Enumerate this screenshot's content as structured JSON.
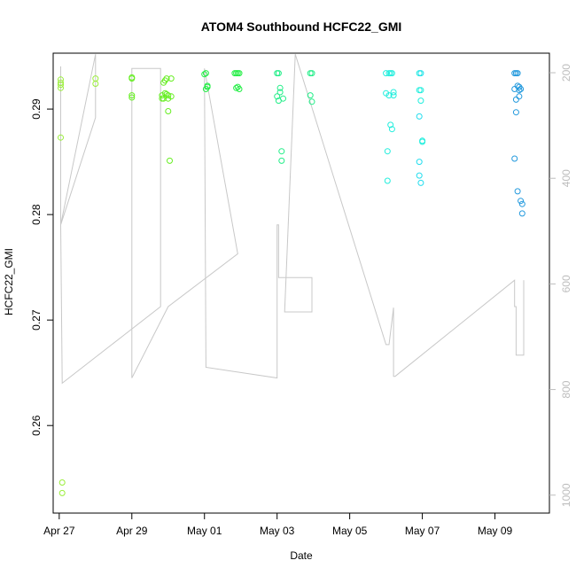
{
  "chart_data": {
    "type": "scatter",
    "title": "ATOM4 Southbound HCFC22_GMI",
    "xlabel": "Date",
    "ylabel": "HCFC22_GMI",
    "x_axis": {
      "type": "date",
      "range": [
        "2016-04-26T20:00",
        "2016-05-10T12:00"
      ],
      "ticks": [
        "2016-04-27",
        "2016-04-29",
        "2016-05-01",
        "2016-05-03",
        "2016-05-05",
        "2016-05-07",
        "2016-05-09"
      ],
      "tick_labels": [
        "Apr 27",
        "Apr 29",
        "May 01",
        "May 03",
        "May 05",
        "May 07",
        "May 09"
      ]
    },
    "y_axis_left": {
      "range": [
        0.2517,
        0.2953
      ],
      "ticks": [
        0.26,
        0.27,
        0.28,
        0.29
      ],
      "tick_labels": [
        "0.26",
        "0.27",
        "0.28",
        "0.29"
      ]
    },
    "y_axis_right": {
      "range": [
        1034,
        163
      ],
      "ticks": [
        200,
        400,
        600,
        800,
        1000
      ],
      "tick_labels": [
        "200",
        "400",
        "600",
        "800",
        "1000"
      ],
      "color": "#bdbdbd"
    },
    "grid": false,
    "marker": "open-circle",
    "series": [
      {
        "color": "#9aee3a",
        "x": [
          "2016-04-27T01:00",
          "2016-04-27T01:00",
          "2016-04-27T01:00",
          "2016-04-27T01:00",
          "2016-04-27T01:00",
          "2016-04-27T02:00",
          "2016-04-27T02:00",
          "2016-04-28T00:00",
          "2016-04-28T00:00"
        ],
        "y": [
          0.2928,
          0.2925,
          0.292,
          0.2923,
          0.2873,
          0.2546,
          0.2536,
          0.2929,
          0.2924
        ]
      },
      {
        "color": "#66ee22",
        "x": [
          "2016-04-29T00:00",
          "2016-04-29T00:00",
          "2016-04-29T00:00",
          "2016-04-29T00:00",
          "2016-04-29T20:00",
          "2016-04-29T20:00",
          "2016-04-29T21:00",
          "2016-04-29T21:00",
          "2016-04-29T22:00",
          "2016-04-29T22:00",
          "2016-04-29T23:00",
          "2016-04-29T23:00",
          "2016-04-30T00:00",
          "2016-04-30T00:00",
          "2016-04-30T00:00",
          "2016-04-30T01:00",
          "2016-04-30T02:00",
          "2016-04-30T02:00"
        ],
        "y": [
          0.293,
          0.2929,
          0.2913,
          0.2911,
          0.291,
          0.2913,
          0.2925,
          0.291,
          0.2927,
          0.2915,
          0.2929,
          0.2914,
          0.2913,
          0.2898,
          0.291,
          0.2851,
          0.2929,
          0.2912
        ]
      },
      {
        "color": "#22ee44",
        "x": [
          "2016-05-01T00:00",
          "2016-05-01T01:00",
          "2016-05-01T01:00",
          "2016-05-01T02:00",
          "2016-05-01T02:00",
          "2016-05-01T20:00",
          "2016-05-01T21:00",
          "2016-05-01T21:00",
          "2016-05-01T22:00",
          "2016-05-01T22:00",
          "2016-05-01T23:00",
          "2016-05-01T23:00"
        ],
        "y": [
          0.2933,
          0.2919,
          0.2934,
          0.2921,
          0.2922,
          0.2934,
          0.2934,
          0.292,
          0.2921,
          0.2934,
          0.2934,
          0.2919
        ]
      },
      {
        "color": "#22ee88",
        "x": [
          "2016-05-03T00:00",
          "2016-05-03T00:00",
          "2016-05-03T01:00",
          "2016-05-03T01:00",
          "2016-05-03T02:00",
          "2016-05-03T02:00",
          "2016-05-03T03:00",
          "2016-05-03T03:00",
          "2016-05-03T04:00",
          "2016-05-03T22:00",
          "2016-05-03T22:00",
          "2016-05-03T23:00",
          "2016-05-03T23:00"
        ],
        "y": [
          0.2934,
          0.2912,
          0.2934,
          0.2908,
          0.2916,
          0.292,
          0.286,
          0.2851,
          0.291,
          0.2934,
          0.2913,
          0.2934,
          0.2907
        ]
      },
      {
        "color": "#22eedd",
        "x": [
          "2016-05-06T00:00",
          "2016-05-06T00:00",
          "2016-05-06T01:00",
          "2016-05-06T01:00",
          "2016-05-06T02:00",
          "2016-05-06T02:00",
          "2016-05-06T03:00",
          "2016-05-06T03:00",
          "2016-05-06T04:00",
          "2016-05-06T04:00",
          "2016-05-06T05:00",
          "2016-05-06T05:00",
          "2016-05-06T22:00",
          "2016-05-06T22:00",
          "2016-05-06T23:00",
          "2016-05-06T23:00",
          "2016-05-07T00:00",
          "2016-05-07T00:00"
        ],
        "y": [
          0.2934,
          0.2915,
          0.286,
          0.2832,
          0.2934,
          0.2913,
          0.2934,
          0.2885,
          0.2934,
          0.2881,
          0.2916,
          0.2913,
          0.2934,
          0.2918,
          0.2918,
          0.2908,
          0.2869,
          0.287
        ]
      },
      {
        "color": "#22ddee",
        "x": [
          "2016-05-06T22:00",
          "2016-05-06T22:00",
          "2016-05-06T22:00",
          "2016-05-06T23:00",
          "2016-05-06T23:00"
        ],
        "y": [
          0.2893,
          0.2837,
          0.285,
          0.283,
          0.2934
        ]
      },
      {
        "color": "#2299dd",
        "x": [
          "2016-05-09T13:00",
          "2016-05-09T13:00",
          "2016-05-09T14:00",
          "2016-05-09T14:00",
          "2016-05-09T15:00",
          "2016-05-09T15:00",
          "2016-05-09T16:00",
          "2016-05-09T16:00",
          "2016-05-09T17:00",
          "2016-05-09T17:00",
          "2016-05-09T18:00",
          "2016-05-09T18:00",
          "2016-05-09T13:00",
          "2016-05-09T14:00",
          "2016-05-09T15:00",
          "2016-05-09T16:00"
        ],
        "y": [
          0.2934,
          0.2919,
          0.2934,
          0.2897,
          0.2934,
          0.2922,
          0.2918,
          0.2921,
          0.2919,
          0.2813,
          0.281,
          0.2801,
          0.2853,
          0.2909,
          0.2822,
          0.2912
        ]
      }
    ],
    "reference_line": {
      "color": "#c8c8c8",
      "axis": "right",
      "x": [
        "2016-04-27T01:00",
        "2016-04-27T01:00",
        "2016-04-28T00:00",
        "2016-04-28T00:00",
        "2016-04-27T01:00",
        "2016-04-27T02:00",
        "2016-04-27T02:00",
        "2016-04-29T19:00",
        "2016-04-29T19:00",
        "2016-04-29T00:00",
        "2016-04-29T00:00",
        "2016-04-29T00:00",
        "2016-04-29T00:00",
        "2016-04-30T00:00",
        "2016-04-30T00:00",
        "2016-05-01T22:00",
        "2016-05-01T22:00",
        "2016-05-01T00:00",
        "2016-05-01T00:00",
        "2016-05-01T01:00",
        "2016-05-01T01:00",
        "2016-05-03T00:00",
        "2016-05-03T00:00",
        "2016-05-03T00:00",
        "2016-05-03T01:00",
        "2016-05-03T01:00",
        "2016-05-03T23:00",
        "2016-05-03T23:00",
        "2016-05-03T05:00",
        "2016-05-03T12:00",
        "2016-05-03T12:00",
        "2016-05-06T00:00",
        "2016-05-06T00:00",
        "2016-05-06T02:00",
        "2016-05-06T02:00",
        "2016-05-06T05:00",
        "2016-05-06T05:00",
        "2016-05-06T05:00",
        "2016-05-06T05:00",
        "2016-05-06T06:00",
        "2016-05-06T06:00",
        "2016-05-09T13:00",
        "2016-05-09T13:00",
        "2016-05-09T13:00",
        "2016-05-09T14:00",
        "2016-05-09T14:00",
        "2016-05-09T19:00",
        "2016-05-09T19:00"
      ],
      "y": [
        188,
        488,
        285,
        165,
        488,
        788,
        788,
        643,
        192,
        192,
        778,
        778,
        778,
        643,
        643,
        543,
        543,
        192,
        192,
        758,
        758,
        778,
        778,
        488,
        488,
        588,
        588,
        653,
        653,
        165,
        165,
        715,
        715,
        715,
        715,
        645,
        645,
        775,
        775,
        775,
        775,
        593,
        593,
        643,
        643,
        735,
        735,
        593
      ]
    }
  }
}
